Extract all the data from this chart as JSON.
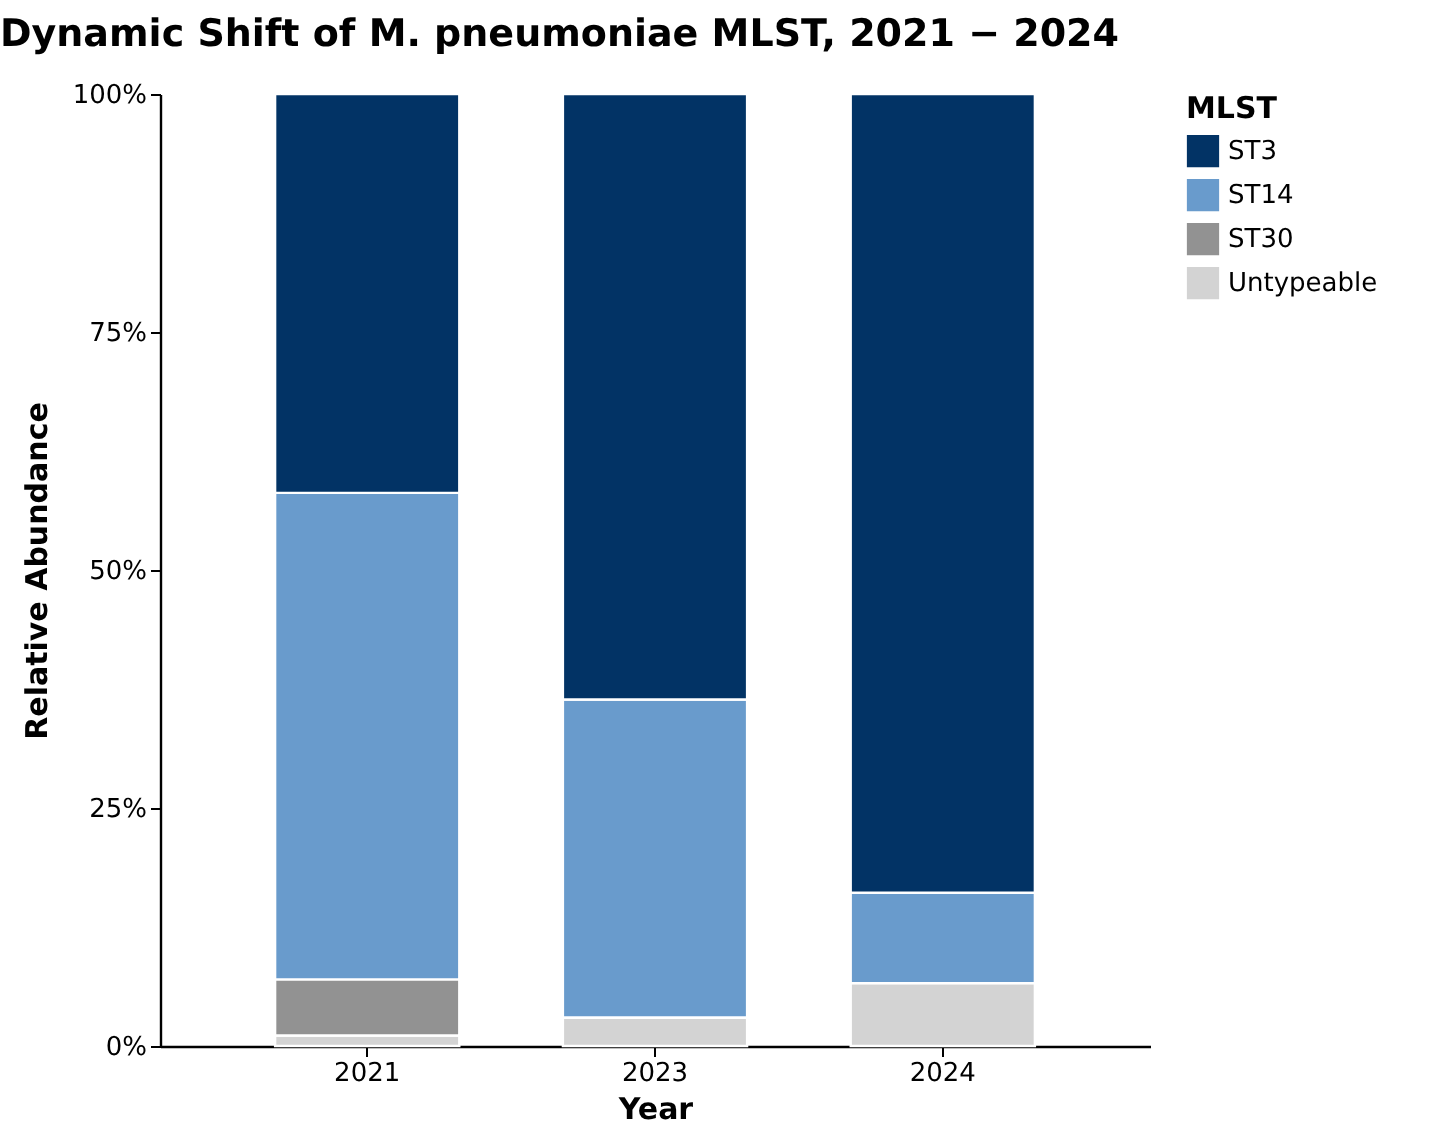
{
  "chart_data": {
    "type": "bar",
    "title": "Dynamic Shift of M. pneumoniae MLST, 2021 − 2024",
    "xlabel": "Year",
    "ylabel": "Relative Abundance",
    "legend_title": "MLST",
    "categories": [
      "2021",
      "2023",
      "2024"
    ],
    "stacked": true,
    "series": [
      {
        "name": "Untypeable",
        "color": "#d3d3d3",
        "values": [
          1.1,
          3.0,
          6.6
        ]
      },
      {
        "name": "ST30",
        "color": "#929292",
        "values": [
          5.9,
          0,
          0
        ]
      },
      {
        "name": "ST14",
        "color": "#699bcc",
        "values": [
          51.1,
          33.4,
          9.5
        ]
      },
      {
        "name": "ST3",
        "color": "#023365",
        "values": [
          41.9,
          63.6,
          83.9
        ]
      }
    ],
    "ylim": [
      0,
      100
    ],
    "yticks": [
      {
        "value": 0,
        "label": "0%"
      },
      {
        "value": 25,
        "label": "25%"
      },
      {
        "value": 50,
        "label": "50%"
      },
      {
        "value": 75,
        "label": "75%"
      },
      {
        "value": 100,
        "label": "100%"
      }
    ],
    "grid": false,
    "legend": "right"
  }
}
